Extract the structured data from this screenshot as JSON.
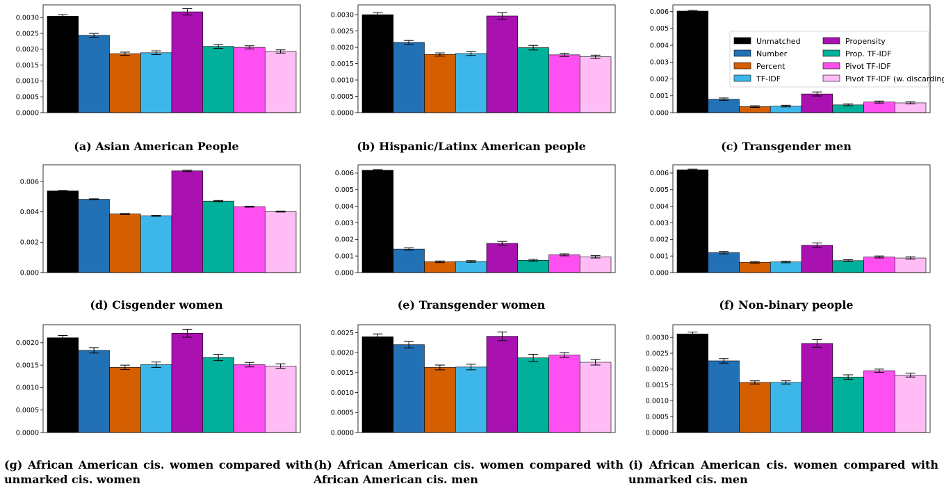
{
  "figure": {
    "captions": [
      "(a) Asian American People",
      "(b) Hispanic/Latinx American people",
      "(c) Transgender men",
      "(d) Cisgender women",
      "(e) Transgender women",
      "(f) Non-binary people",
      "(g) African American cis. women compared with unmarked cis. women",
      "(h) African American cis. women compared with African American cis. men",
      "(i) African American cis. women compared with unmarked cis. men"
    ]
  },
  "series_colors": {
    "Unmatched": "#000000",
    "Number": "#2271b5",
    "Percent": "#d55e00",
    "TF-IDF": "#3db7e9",
    "Propensity": "#a912b1",
    "Prop. TF-IDF": "#00b09b",
    "Pivot TF-IDF": "#ff4ff0",
    "Pivot TF-IDF (w. discarding)": "#ffbcf5"
  },
  "chart_data": [
    {
      "type": "bar",
      "caption": "(a) Asian American People",
      "categories": [
        "Unmatched",
        "Number",
        "Percent",
        "TF-IDF",
        "Propensity",
        "Prop. TF-IDF",
        "Pivot TF-IDF",
        "Pivot TF-IDF (w. discarding)"
      ],
      "values": [
        0.00304,
        0.00244,
        0.00186,
        0.00189,
        0.00318,
        0.00209,
        0.00206,
        0.00193
      ],
      "errors": [
        5e-05,
        6e-05,
        5e-05,
        6e-05,
        0.0001,
        6e-05,
        5e-05,
        5e-05
      ],
      "ylim": [
        0,
        0.0034
      ],
      "yticks": [
        0.0,
        0.0005,
        0.001,
        0.0015,
        0.002,
        0.0025,
        0.003
      ],
      "ytick_labels": [
        "0.0000",
        "0.0005",
        "0.0010",
        "0.0015",
        "0.0020",
        "0.0025",
        "0.0030"
      ],
      "legend": false
    },
    {
      "type": "bar",
      "caption": "(b) Hispanic/Latinx American people",
      "categories": [
        "Unmatched",
        "Number",
        "Percent",
        "TF-IDF",
        "Propensity",
        "Prop. TF-IDF",
        "Pivot TF-IDF",
        "Pivot TF-IDF (w. discarding)"
      ],
      "values": [
        0.003,
        0.00215,
        0.00178,
        0.00181,
        0.00296,
        0.00199,
        0.00177,
        0.00171
      ],
      "errors": [
        6e-05,
        6e-05,
        5e-05,
        6e-05,
        0.0001,
        7e-05,
        5e-05,
        5e-05
      ],
      "ylim": [
        0,
        0.0033
      ],
      "yticks": [
        0.0,
        0.0005,
        0.001,
        0.0015,
        0.002,
        0.0025,
        0.003
      ],
      "ytick_labels": [
        "0.0000",
        "0.0005",
        "0.0010",
        "0.0015",
        "0.0020",
        "0.0025",
        "0.0030"
      ],
      "legend": false
    },
    {
      "type": "bar",
      "caption": "(c) Transgender men",
      "categories": [
        "Unmatched",
        "Number",
        "Percent",
        "TF-IDF",
        "Propensity",
        "Prop. TF-IDF",
        "Pivot TF-IDF",
        "Pivot TF-IDF (w. discarding)"
      ],
      "values": [
        0.00603,
        0.0008,
        0.00036,
        0.00039,
        0.00111,
        0.00046,
        0.00063,
        0.00058
      ],
      "errors": [
        5e-05,
        7e-05,
        5e-05,
        5e-05,
        0.00012,
        6e-05,
        6e-05,
        6e-05
      ],
      "ylim": [
        0,
        0.0064
      ],
      "yticks": [
        0.0,
        0.001,
        0.002,
        0.003,
        0.004,
        0.005,
        0.006
      ],
      "ytick_labels": [
        "0.000",
        "0.001",
        "0.002",
        "0.003",
        "0.004",
        "0.005",
        "0.006"
      ],
      "legend": true,
      "legend_position": "upper-right",
      "legend_entries": [
        "Unmatched",
        "Number",
        "Percent",
        "TF-IDF",
        "Propensity",
        "Prop. TF-IDF",
        "Pivot TF-IDF",
        "Pivot TF-IDF (w. discarding)"
      ]
    },
    {
      "type": "bar",
      "caption": "(d) Cisgender women",
      "categories": [
        "Unmatched",
        "Number",
        "Percent",
        "TF-IDF",
        "Propensity",
        "Prop. TF-IDF",
        "Pivot TF-IDF",
        "Pivot TF-IDF (w. discarding)"
      ],
      "values": [
        0.00538,
        0.00483,
        0.00386,
        0.00374,
        0.0067,
        0.00471,
        0.00434,
        0.00402
      ],
      "errors": [
        3e-05,
        3e-05,
        3e-05,
        3e-05,
        5e-05,
        4e-05,
        3e-05,
        3e-05
      ],
      "ylim": [
        0,
        0.0071
      ],
      "yticks": [
        0.0,
        0.002,
        0.004,
        0.006
      ],
      "ytick_labels": [
        "0.000",
        "0.002",
        "0.004",
        "0.006"
      ],
      "legend": false
    },
    {
      "type": "bar",
      "caption": "(e) Transgender women",
      "categories": [
        "Unmatched",
        "Number",
        "Percent",
        "TF-IDF",
        "Propensity",
        "Prop. TF-IDF",
        "Pivot TF-IDF",
        "Pivot TF-IDF (w. discarding)"
      ],
      "values": [
        0.00617,
        0.00142,
        0.00065,
        0.00067,
        0.00176,
        0.00074,
        0.00107,
        0.00095
      ],
      "errors": [
        4e-05,
        7e-05,
        5e-05,
        5e-05,
        0.00012,
        6e-05,
        6e-05,
        7e-05
      ],
      "ylim": [
        0,
        0.0065
      ],
      "yticks": [
        0.0,
        0.001,
        0.002,
        0.003,
        0.004,
        0.005,
        0.006
      ],
      "ytick_labels": [
        "0.000",
        "0.001",
        "0.002",
        "0.003",
        "0.004",
        "0.005",
        "0.006"
      ],
      "legend": false
    },
    {
      "type": "bar",
      "caption": "(f) Non-binary people",
      "categories": [
        "Unmatched",
        "Number",
        "Percent",
        "TF-IDF",
        "Propensity",
        "Prop. TF-IDF",
        "Pivot TF-IDF",
        "Pivot TF-IDF (w. discarding)"
      ],
      "values": [
        0.0062,
        0.0012,
        0.00062,
        0.00064,
        0.00165,
        0.00072,
        0.00094,
        0.00088
      ],
      "errors": [
        4e-05,
        7e-05,
        5e-05,
        5e-05,
        0.00014,
        6e-05,
        6e-05,
        7e-05
      ],
      "ylim": [
        0,
        0.0065
      ],
      "yticks": [
        0.0,
        0.001,
        0.002,
        0.003,
        0.004,
        0.005,
        0.006
      ],
      "ytick_labels": [
        "0.000",
        "0.001",
        "0.002",
        "0.003",
        "0.004",
        "0.005",
        "0.006"
      ],
      "legend": false
    },
    {
      "type": "bar",
      "caption": "(g) African American cis. women compared with unmarked cis. women",
      "categories": [
        "Unmatched",
        "Number",
        "Percent",
        "TF-IDF",
        "Propensity",
        "Prop. TF-IDF",
        "Pivot TF-IDF",
        "Pivot TF-IDF (w. discarding)"
      ],
      "values": [
        0.00211,
        0.00183,
        0.00145,
        0.00151,
        0.00221,
        0.00167,
        0.00151,
        0.00148
      ],
      "errors": [
        5e-05,
        6e-05,
        5e-05,
        6e-05,
        9e-05,
        7e-05,
        5e-05,
        5e-05
      ],
      "ylim": [
        0,
        0.0024
      ],
      "yticks": [
        0.0,
        0.0005,
        0.001,
        0.0015,
        0.002
      ],
      "ytick_labels": [
        "0.0000",
        "0.0005",
        "0.0010",
        "0.0015",
        "0.0020"
      ],
      "legend": false
    },
    {
      "type": "bar",
      "caption": "(h) African American cis. women compared with African American cis. men",
      "categories": [
        "Unmatched",
        "Number",
        "Percent",
        "TF-IDF",
        "Propensity",
        "Prop. TF-IDF",
        "Pivot TF-IDF",
        "Pivot TF-IDF (w. discarding)"
      ],
      "values": [
        0.0024,
        0.0022,
        0.00163,
        0.00164,
        0.00241,
        0.00187,
        0.00194,
        0.00176
      ],
      "errors": [
        7e-05,
        8e-05,
        6e-05,
        7e-05,
        0.00011,
        9e-05,
        6e-05,
        7e-05
      ],
      "ylim": [
        0,
        0.0027
      ],
      "yticks": [
        0.0,
        0.0005,
        0.001,
        0.0015,
        0.002,
        0.0025
      ],
      "ytick_labels": [
        "0.0000",
        "0.0005",
        "0.0010",
        "0.0015",
        "0.0020",
        "0.0025"
      ],
      "legend": false
    },
    {
      "type": "bar",
      "caption": "(i) African American cis. women compared with unmarked cis. men",
      "categories": [
        "Unmatched",
        "Number",
        "Percent",
        "TF-IDF",
        "Propensity",
        "Prop. TF-IDF",
        "Pivot TF-IDF",
        "Pivot TF-IDF (w. discarding)"
      ],
      "values": [
        0.00311,
        0.00226,
        0.00158,
        0.00158,
        0.00281,
        0.00175,
        0.00195,
        0.00181
      ],
      "errors": [
        6e-05,
        7e-05,
        5e-05,
        5e-05,
        0.00012,
        7e-05,
        5e-05,
        6e-05
      ],
      "ylim": [
        0,
        0.0034
      ],
      "yticks": [
        0.0,
        0.0005,
        0.001,
        0.0015,
        0.002,
        0.0025,
        0.003
      ],
      "ytick_labels": [
        "0.0000",
        "0.0005",
        "0.0010",
        "0.0015",
        "0.0020",
        "0.0025",
        "0.0030"
      ],
      "legend": false
    }
  ]
}
